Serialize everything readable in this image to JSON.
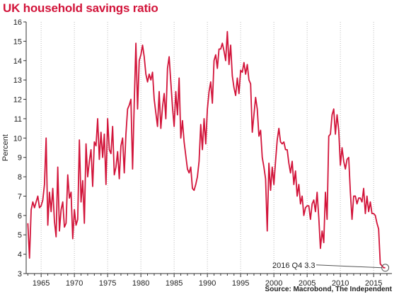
{
  "title": "UK household savings ratio",
  "source": "Source: Macrobond, The Independent",
  "colors": {
    "title": "#d2143a",
    "line": "#d2143a",
    "grid": "#bbbbbb",
    "axis": "#333333"
  },
  "chart_data": {
    "type": "line",
    "title": "UK household savings ratio",
    "xlabel": "",
    "ylabel": "Percent",
    "xlim": [
      1962.75,
      2017.75
    ],
    "ylim": [
      3,
      16
    ],
    "x_ticks": [
      1965,
      1970,
      1975,
      1980,
      1985,
      1990,
      1995,
      2000,
      2005,
      2010,
      2015
    ],
    "y_ticks": [
      3,
      4,
      5,
      6,
      7,
      8,
      9,
      10,
      11,
      12,
      13,
      14,
      15,
      16
    ],
    "grid": {
      "x": true,
      "y": false,
      "style": "dotted"
    },
    "annotation": {
      "x": 2016.75,
      "y": 3.3,
      "text": "2016 Q4 3.3"
    },
    "series": [
      {
        "points": [
          [
            1963.0,
            5.6
          ],
          [
            1963.25,
            3.8
          ],
          [
            1963.5,
            6.3
          ],
          [
            1963.75,
            6.7
          ],
          [
            1964.0,
            6.4
          ],
          [
            1964.25,
            6.7
          ],
          [
            1964.5,
            7.0
          ],
          [
            1964.75,
            6.4
          ],
          [
            1965.0,
            6.5
          ],
          [
            1965.25,
            6.8
          ],
          [
            1965.5,
            7.6
          ],
          [
            1965.75,
            10.0
          ],
          [
            1966.0,
            5.5
          ],
          [
            1966.25,
            7.2
          ],
          [
            1966.5,
            6.2
          ],
          [
            1966.75,
            7.4
          ],
          [
            1967.0,
            5.7
          ],
          [
            1967.25,
            4.9
          ],
          [
            1967.5,
            8.5
          ],
          [
            1967.75,
            5.2
          ],
          [
            1968.0,
            6.3
          ],
          [
            1968.25,
            6.7
          ],
          [
            1968.5,
            5.4
          ],
          [
            1968.75,
            5.6
          ],
          [
            1969.0,
            8.1
          ],
          [
            1969.25,
            6.9
          ],
          [
            1969.5,
            7.2
          ],
          [
            1969.75,
            4.8
          ],
          [
            1970.0,
            6.3
          ],
          [
            1970.25,
            5.5
          ],
          [
            1970.5,
            5.8
          ],
          [
            1970.75,
            9.9
          ],
          [
            1971.0,
            6.7
          ],
          [
            1971.25,
            7.8
          ],
          [
            1971.5,
            5.6
          ],
          [
            1971.75,
            9.7
          ],
          [
            1972.0,
            8.0
          ],
          [
            1972.25,
            8.8
          ],
          [
            1972.5,
            9.4
          ],
          [
            1972.75,
            7.5
          ],
          [
            1973.0,
            9.8
          ],
          [
            1973.25,
            9.6
          ],
          [
            1973.5,
            11.0
          ],
          [
            1973.75,
            8.9
          ],
          [
            1974.0,
            10.3
          ],
          [
            1974.25,
            9.0
          ],
          [
            1974.5,
            10.2
          ],
          [
            1974.75,
            7.6
          ],
          [
            1975.0,
            11.0
          ],
          [
            1975.25,
            9.4
          ],
          [
            1975.5,
            9.2
          ],
          [
            1975.75,
            10.6
          ],
          [
            1976.0,
            8.1
          ],
          [
            1976.25,
            8.5
          ],
          [
            1976.5,
            9.3
          ],
          [
            1976.75,
            7.9
          ],
          [
            1977.0,
            9.6
          ],
          [
            1977.25,
            10.0
          ],
          [
            1977.5,
            8.2
          ],
          [
            1977.75,
            10.2
          ],
          [
            1978.0,
            11.5
          ],
          [
            1978.25,
            11.7
          ],
          [
            1978.5,
            12.0
          ],
          [
            1978.75,
            8.4
          ],
          [
            1979.0,
            11.8
          ],
          [
            1979.25,
            14.9
          ],
          [
            1979.5,
            11.5
          ],
          [
            1979.75,
            14.0
          ],
          [
            1980.0,
            14.3
          ],
          [
            1980.25,
            14.8
          ],
          [
            1980.5,
            14.2
          ],
          [
            1980.75,
            13.3
          ],
          [
            1981.0,
            12.9
          ],
          [
            1981.25,
            13.3
          ],
          [
            1981.5,
            13.0
          ],
          [
            1981.75,
            13.4
          ],
          [
            1982.0,
            12.0
          ],
          [
            1982.25,
            11.3
          ],
          [
            1982.5,
            10.6
          ],
          [
            1982.75,
            12.4
          ],
          [
            1983.0,
            10.5
          ],
          [
            1983.25,
            11.6
          ],
          [
            1983.5,
            12.3
          ],
          [
            1983.75,
            11.0
          ],
          [
            1984.0,
            13.6
          ],
          [
            1984.25,
            14.2
          ],
          [
            1984.5,
            12.9
          ],
          [
            1984.75,
            11.6
          ],
          [
            1985.0,
            10.6
          ],
          [
            1985.25,
            12.4
          ],
          [
            1985.5,
            11.2
          ],
          [
            1985.75,
            13.1
          ],
          [
            1986.0,
            10.0
          ],
          [
            1986.25,
            10.9
          ],
          [
            1986.5,
            9.8
          ],
          [
            1986.75,
            9.1
          ],
          [
            1987.0,
            8.4
          ],
          [
            1987.25,
            8.2
          ],
          [
            1987.5,
            8.5
          ],
          [
            1987.75,
            7.4
          ],
          [
            1988.0,
            7.3
          ],
          [
            1988.25,
            7.6
          ],
          [
            1988.5,
            8.0
          ],
          [
            1988.75,
            8.8
          ],
          [
            1989.0,
            10.7
          ],
          [
            1989.25,
            9.4
          ],
          [
            1989.5,
            11.0
          ],
          [
            1989.75,
            9.7
          ],
          [
            1990.0,
            11.5
          ],
          [
            1990.25,
            12.4
          ],
          [
            1990.5,
            12.9
          ],
          [
            1990.75,
            11.8
          ],
          [
            1991.0,
            14.0
          ],
          [
            1991.25,
            14.3
          ],
          [
            1991.5,
            13.6
          ],
          [
            1991.75,
            14.6
          ],
          [
            1992.0,
            14.6
          ],
          [
            1992.25,
            14.9
          ],
          [
            1992.5,
            14.5
          ],
          [
            1992.75,
            14.0
          ],
          [
            1993.0,
            15.5
          ],
          [
            1993.25,
            13.8
          ],
          [
            1993.5,
            14.8
          ],
          [
            1993.75,
            13.2
          ],
          [
            1994.0,
            12.6
          ],
          [
            1994.25,
            12.2
          ],
          [
            1994.5,
            13.1
          ],
          [
            1994.75,
            12.3
          ],
          [
            1995.0,
            13.5
          ],
          [
            1995.25,
            13.4
          ],
          [
            1995.5,
            13.9
          ],
          [
            1995.75,
            13.3
          ],
          [
            1996.0,
            13.8
          ],
          [
            1996.25,
            13.0
          ],
          [
            1996.5,
            12.8
          ],
          [
            1996.75,
            10.3
          ],
          [
            1997.0,
            11.2
          ],
          [
            1997.25,
            12.1
          ],
          [
            1997.5,
            11.5
          ],
          [
            1997.75,
            10.1
          ],
          [
            1998.0,
            10.4
          ],
          [
            1998.25,
            9.0
          ],
          [
            1998.5,
            8.5
          ],
          [
            1998.75,
            7.9
          ],
          [
            1999.0,
            5.2
          ],
          [
            1999.25,
            8.7
          ],
          [
            1999.5,
            7.3
          ],
          [
            1999.75,
            8.5
          ],
          [
            2000.0,
            7.6
          ],
          [
            2000.25,
            8.8
          ],
          [
            2000.5,
            9.9
          ],
          [
            2000.75,
            10.5
          ],
          [
            2001.0,
            9.8
          ],
          [
            2001.25,
            9.7
          ],
          [
            2001.5,
            9.8
          ],
          [
            2001.75,
            9.4
          ],
          [
            2002.0,
            9.4
          ],
          [
            2002.25,
            8.7
          ],
          [
            2002.5,
            8.2
          ],
          [
            2002.75,
            8.8
          ],
          [
            2003.0,
            7.6
          ],
          [
            2003.25,
            8.3
          ],
          [
            2003.5,
            7.0
          ],
          [
            2003.75,
            7.6
          ],
          [
            2004.0,
            6.6
          ],
          [
            2004.25,
            7.0
          ],
          [
            2004.5,
            6.0
          ],
          [
            2004.75,
            6.4
          ],
          [
            2005.0,
            6.5
          ],
          [
            2005.25,
            6.5
          ],
          [
            2005.5,
            5.8
          ],
          [
            2005.75,
            6.6
          ],
          [
            2006.0,
            6.8
          ],
          [
            2006.25,
            6.2
          ],
          [
            2006.5,
            7.2
          ],
          [
            2006.75,
            5.9
          ],
          [
            2007.0,
            4.3
          ],
          [
            2007.25,
            5.2
          ],
          [
            2007.5,
            4.6
          ],
          [
            2007.75,
            7.2
          ],
          [
            2008.0,
            5.8
          ],
          [
            2008.25,
            10.1
          ],
          [
            2008.5,
            10.2
          ],
          [
            2008.75,
            11.2
          ],
          [
            2009.0,
            11.5
          ],
          [
            2009.25,
            10.2
          ],
          [
            2009.5,
            11.2
          ],
          [
            2009.75,
            10.4
          ],
          [
            2010.0,
            8.6
          ],
          [
            2010.25,
            9.5
          ],
          [
            2010.5,
            8.8
          ],
          [
            2010.75,
            8.4
          ],
          [
            2011.0,
            8.9
          ],
          [
            2011.25,
            9.0
          ],
          [
            2011.5,
            7.2
          ],
          [
            2011.75,
            5.8
          ],
          [
            2012.0,
            7.0
          ],
          [
            2012.25,
            7.0
          ],
          [
            2012.5,
            6.6
          ],
          [
            2012.75,
            6.9
          ],
          [
            2013.0,
            6.9
          ],
          [
            2013.25,
            6.7
          ],
          [
            2013.5,
            7.4
          ],
          [
            2013.75,
            6.1
          ],
          [
            2014.0,
            7.0
          ],
          [
            2014.25,
            6.2
          ],
          [
            2014.5,
            6.7
          ],
          [
            2014.75,
            6.1
          ],
          [
            2015.0,
            6.1
          ],
          [
            2015.25,
            6.0
          ],
          [
            2015.5,
            5.6
          ],
          [
            2015.75,
            5.3
          ],
          [
            2016.0,
            3.5
          ],
          [
            2016.25,
            3.4
          ],
          [
            2016.5,
            3.3
          ],
          [
            2016.75,
            3.3
          ]
        ]
      }
    ]
  }
}
